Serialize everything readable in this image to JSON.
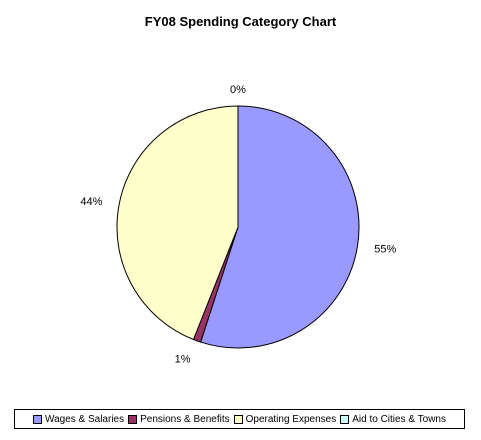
{
  "chart_data": {
    "type": "pie",
    "title": "FY08 Spending Category Chart",
    "categories": [
      "Wages & Salaries",
      "Pensions & Benefits",
      "Operating Expenses",
      "Aid to Cities & Towns"
    ],
    "values": [
      55,
      1,
      44,
      0
    ],
    "value_labels": [
      "55%",
      "1%",
      "44%",
      "0%"
    ],
    "colors": [
      "#9999FF",
      "#993366",
      "#FFFFCC",
      "#CCFFFF"
    ],
    "legend_position": "bottom"
  }
}
